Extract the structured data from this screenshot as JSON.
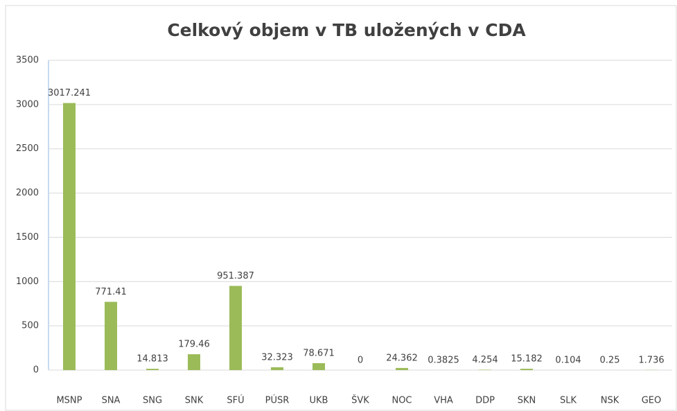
{
  "chart_data": {
    "type": "bar",
    "title": "Celkový objem v TB uložených v CDA",
    "categories": [
      "MSNP",
      "SNA",
      "SNG",
      "SNK",
      "SFÚ",
      "PÚSR",
      "UKB",
      "ŠVK",
      "NOC",
      "VHA",
      "DDP",
      "SKN",
      "SLK",
      "NSK",
      "GEO"
    ],
    "values": [
      3017.241,
      771.41,
      14.813,
      179.46,
      951.387,
      32.323,
      78.671,
      0,
      24.362,
      0.3825,
      4.254,
      15.182,
      0.104,
      0.25,
      1.736
    ],
    "color": "#9bbb59",
    "ylim": [
      0,
      3500
    ],
    "yticks": [
      0,
      500,
      1000,
      1500,
      2000,
      2500,
      3000,
      3500
    ],
    "grid": true
  }
}
